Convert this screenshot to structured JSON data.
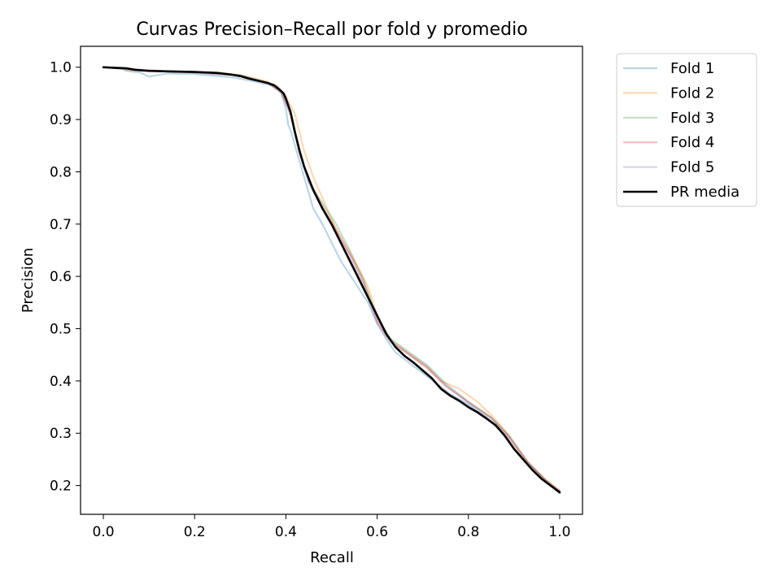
{
  "chart_data": {
    "type": "line",
    "title": "Curvas Precision–Recall por fold y promedio",
    "xlabel": "Recall",
    "ylabel": "Precision",
    "xlim": [
      -0.05,
      1.05
    ],
    "ylim": [
      0.145,
      1.04
    ],
    "grid": false,
    "legend_position": "outside-top-right",
    "x_ticks": [
      0.0,
      0.2,
      0.4,
      0.6,
      0.8,
      1.0
    ],
    "x_tick_labels": [
      "0.0",
      "0.2",
      "0.4",
      "0.6",
      "0.8",
      "1.0"
    ],
    "y_ticks": [
      0.2,
      0.3,
      0.4,
      0.5,
      0.6,
      0.7,
      0.8,
      0.9,
      1.0
    ],
    "y_tick_labels": [
      "0.2",
      "0.3",
      "0.4",
      "0.5",
      "0.6",
      "0.7",
      "0.8",
      "0.9",
      "1.0"
    ],
    "series": [
      {
        "name": "Fold 1",
        "color": "#1f77b4",
        "opacity": 0.3,
        "x": [
          0.0,
          0.04,
          0.05,
          0.08,
          0.1,
          0.14,
          0.2,
          0.28,
          0.33,
          0.37,
          0.39,
          0.4,
          0.405,
          0.41,
          0.43,
          0.45,
          0.46,
          0.48,
          0.5,
          0.52,
          0.55,
          0.58,
          0.6,
          0.62,
          0.64,
          0.67,
          0.7,
          0.73,
          0.76,
          0.8,
          0.84,
          0.87,
          0.9,
          0.93,
          0.96,
          0.98,
          1.0
        ],
        "y": [
          1.0,
          0.998,
          0.993,
          0.99,
          0.982,
          0.988,
          0.987,
          0.981,
          0.973,
          0.965,
          0.95,
          0.92,
          0.89,
          0.88,
          0.82,
          0.76,
          0.73,
          0.7,
          0.665,
          0.63,
          0.59,
          0.55,
          0.51,
          0.48,
          0.455,
          0.435,
          0.415,
          0.395,
          0.375,
          0.355,
          0.33,
          0.305,
          0.27,
          0.24,
          0.215,
          0.2,
          0.185
        ]
      },
      {
        "name": "Fold 2",
        "color": "#ff7f0e",
        "opacity": 0.3,
        "x": [
          0.0,
          0.04,
          0.06,
          0.1,
          0.15,
          0.2,
          0.25,
          0.3,
          0.35,
          0.38,
          0.4,
          0.42,
          0.44,
          0.46,
          0.48,
          0.5,
          0.52,
          0.55,
          0.58,
          0.6,
          0.62,
          0.65,
          0.68,
          0.71,
          0.74,
          0.78,
          0.82,
          0.85,
          0.88,
          0.91,
          0.94,
          0.97,
          1.0
        ],
        "y": [
          1.0,
          0.998,
          0.993,
          0.994,
          0.991,
          0.991,
          0.99,
          0.985,
          0.975,
          0.965,
          0.945,
          0.91,
          0.84,
          0.79,
          0.75,
          0.71,
          0.67,
          0.63,
          0.58,
          0.525,
          0.485,
          0.465,
          0.445,
          0.425,
          0.4,
          0.385,
          0.36,
          0.335,
          0.305,
          0.265,
          0.235,
          0.21,
          0.19
        ]
      },
      {
        "name": "Fold 3",
        "color": "#2ca02c",
        "opacity": 0.3,
        "x": [
          0.0,
          0.05,
          0.1,
          0.2,
          0.3,
          0.36,
          0.39,
          0.41,
          0.43,
          0.45,
          0.48,
          0.51,
          0.54,
          0.57,
          0.6,
          0.63,
          0.67,
          0.71,
          0.75,
          0.8,
          0.85,
          0.89,
          0.93,
          0.97,
          1.0
        ],
        "y": [
          1.0,
          0.996,
          0.993,
          0.99,
          0.985,
          0.97,
          0.955,
          0.915,
          0.84,
          0.78,
          0.74,
          0.7,
          0.65,
          0.595,
          0.52,
          0.48,
          0.455,
          0.43,
          0.395,
          0.36,
          0.33,
          0.295,
          0.245,
          0.21,
          0.188
        ]
      },
      {
        "name": "Fold 4",
        "color": "#d62728",
        "opacity": 0.3,
        "x": [
          0.0,
          0.05,
          0.1,
          0.2,
          0.3,
          0.36,
          0.39,
          0.41,
          0.43,
          0.45,
          0.48,
          0.51,
          0.54,
          0.57,
          0.6,
          0.63,
          0.67,
          0.71,
          0.75,
          0.8,
          0.85,
          0.89,
          0.93,
          0.97,
          1.0
        ],
        "y": [
          1.0,
          0.997,
          0.994,
          0.99,
          0.984,
          0.97,
          0.952,
          0.91,
          0.835,
          0.785,
          0.735,
          0.69,
          0.645,
          0.59,
          0.515,
          0.475,
          0.45,
          0.425,
          0.39,
          0.36,
          0.33,
          0.293,
          0.245,
          0.21,
          0.19
        ]
      },
      {
        "name": "Fold 5",
        "color": "#9467bd",
        "opacity": 0.3,
        "x": [
          0.0,
          0.05,
          0.1,
          0.2,
          0.3,
          0.36,
          0.39,
          0.41,
          0.43,
          0.45,
          0.48,
          0.51,
          0.54,
          0.57,
          0.6,
          0.63,
          0.67,
          0.71,
          0.75,
          0.8,
          0.85,
          0.89,
          0.93,
          0.97,
          1.0
        ],
        "y": [
          1.0,
          0.997,
          0.994,
          0.99,
          0.984,
          0.97,
          0.953,
          0.912,
          0.838,
          0.78,
          0.73,
          0.685,
          0.64,
          0.585,
          0.51,
          0.475,
          0.452,
          0.428,
          0.392,
          0.358,
          0.328,
          0.29,
          0.243,
          0.208,
          0.187
        ]
      },
      {
        "name": "PR media",
        "color": "#000000",
        "opacity": 1.0,
        "width": 2.6,
        "x": [
          0.0,
          0.025,
          0.05,
          0.07,
          0.1,
          0.15,
          0.2,
          0.25,
          0.28,
          0.3,
          0.32,
          0.34,
          0.36,
          0.375,
          0.385,
          0.395,
          0.4,
          0.41,
          0.42,
          0.43,
          0.44,
          0.46,
          0.48,
          0.5,
          0.52,
          0.54,
          0.56,
          0.58,
          0.6,
          0.62,
          0.64,
          0.66,
          0.68,
          0.7,
          0.72,
          0.74,
          0.76,
          0.78,
          0.8,
          0.82,
          0.84,
          0.86,
          0.87,
          0.88,
          0.9,
          0.92,
          0.94,
          0.96,
          0.98,
          1.0
        ],
        "y": [
          1.0,
          0.999,
          0.998,
          0.995,
          0.993,
          0.992,
          0.991,
          0.989,
          0.986,
          0.983,
          0.978,
          0.974,
          0.97,
          0.965,
          0.958,
          0.95,
          0.94,
          0.915,
          0.875,
          0.84,
          0.81,
          0.765,
          0.73,
          0.7,
          0.665,
          0.63,
          0.595,
          0.56,
          0.525,
          0.49,
          0.465,
          0.448,
          0.435,
          0.42,
          0.405,
          0.385,
          0.372,
          0.362,
          0.35,
          0.34,
          0.328,
          0.315,
          0.305,
          0.295,
          0.27,
          0.25,
          0.23,
          0.213,
          0.2,
          0.187
        ]
      }
    ]
  }
}
